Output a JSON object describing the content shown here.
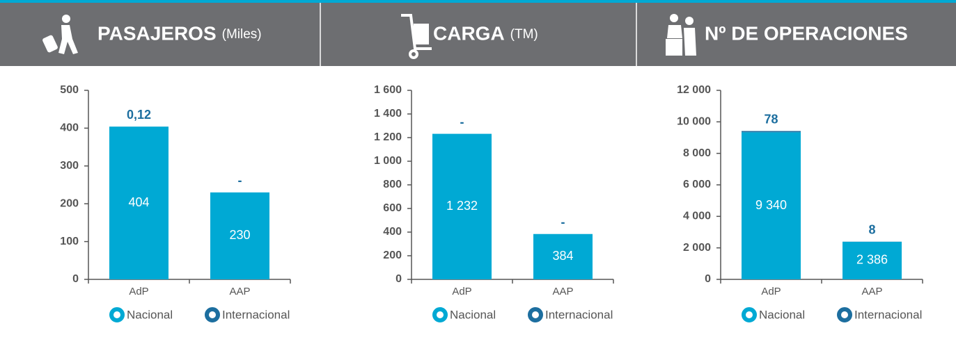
{
  "chart_data": [
    {
      "type": "bar",
      "stacked": true,
      "title": "PASAJEROS",
      "subtitle": "(Miles)",
      "categories": [
        "AdP",
        "AAP"
      ],
      "series": [
        {
          "name": "Nacional",
          "color": "#00a9d4",
          "values": [
            404,
            230
          ]
        },
        {
          "name": "Internacional",
          "color": "#1c6e9f",
          "values": [
            0.12,
            0
          ],
          "value_labels": [
            "0,12",
            "-"
          ]
        }
      ],
      "ylim": [
        0,
        500
      ],
      "yticks": [
        0,
        100,
        200,
        300,
        400,
        500
      ]
    },
    {
      "type": "bar",
      "stacked": true,
      "title": "CARGA",
      "subtitle": "(TM)",
      "categories": [
        "AdP",
        "AAP"
      ],
      "series": [
        {
          "name": "Nacional",
          "color": "#00a9d4",
          "values": [
            1232,
            384
          ],
          "value_labels": [
            "1 232",
            "384"
          ]
        },
        {
          "name": "Internacional",
          "color": "#1c6e9f",
          "values": [
            0,
            0
          ],
          "value_labels": [
            "-",
            "-"
          ]
        }
      ],
      "ylim": [
        0,
        1600
      ],
      "yticks": [
        0,
        200,
        400,
        600,
        800,
        {
          "value": 1000,
          "label": "1 000"
        },
        {
          "value": 1200,
          "label": "1 200"
        },
        {
          "value": 1400,
          "label": "1 400"
        },
        {
          "value": 1600,
          "label": "1 600"
        }
      ]
    },
    {
      "type": "bar",
      "stacked": true,
      "title": "Nº DE OPERACIONES",
      "categories": [
        "AdP",
        "AAP"
      ],
      "series": [
        {
          "name": "Nacional",
          "color": "#00a9d4",
          "values": [
            9340,
            2386
          ],
          "value_labels": [
            "9 340",
            "2 386"
          ]
        },
        {
          "name": "Internacional",
          "color": "#1c6e9f",
          "values": [
            78,
            8
          ]
        }
      ],
      "ylim": [
        0,
        12000
      ],
      "yticks": [
        0,
        {
          "value": 2000,
          "label": "2 000"
        },
        {
          "value": 4000,
          "label": "4 000"
        },
        {
          "value": 6000,
          "label": "6 000"
        },
        {
          "value": 8000,
          "label": "8 000"
        },
        {
          "value": 10000,
          "label": "10 000"
        },
        {
          "value": 12000,
          "label": "12 000"
        }
      ]
    }
  ]
}
